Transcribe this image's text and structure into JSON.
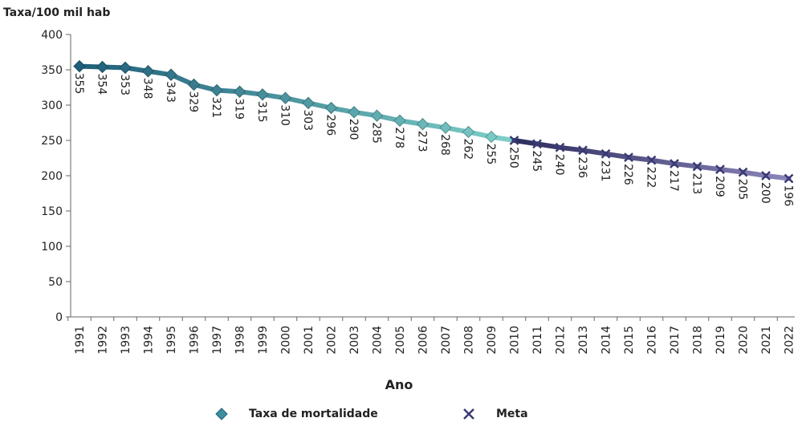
{
  "chart_data": {
    "type": "line",
    "ylabel": "Taxa/100 mil hab",
    "xlabel": "Ano",
    "ylim": [
      0,
      400
    ],
    "yticks": [
      0,
      50,
      100,
      150,
      200,
      250,
      300,
      350,
      400
    ],
    "grid": false,
    "legend_position": "bottom",
    "x": [
      "1991",
      "1992",
      "1993",
      "1994",
      "1995",
      "1996",
      "1997",
      "1998",
      "1999",
      "2000",
      "2001",
      "2002",
      "2003",
      "2004",
      "2005",
      "2006",
      "2007",
      "2008",
      "2009",
      "2010",
      "2011",
      "2012",
      "2013",
      "2014",
      "2015",
      "2016",
      "2017",
      "2018",
      "2019",
      "2020",
      "2021",
      "2022"
    ],
    "series": [
      {
        "name": "Taxa de mortalidade",
        "marker": "diamond",
        "color_start": "#1f5f7a",
        "color_end": "#7ecfc9",
        "x": [
          "1991",
          "1992",
          "1993",
          "1994",
          "1995",
          "1996",
          "1997",
          "1998",
          "1999",
          "2000",
          "2001",
          "2002",
          "2003",
          "2004",
          "2005",
          "2006",
          "2007",
          "2008",
          "2009",
          "2010"
        ],
        "values": [
          355,
          354,
          353,
          348,
          343,
          329,
          321,
          319,
          315,
          310,
          303,
          296,
          290,
          285,
          278,
          273,
          268,
          262,
          255,
          250
        ]
      },
      {
        "name": "Meta",
        "marker": "x",
        "color_start": "#2b2c5e",
        "color_end": "#8a84b8",
        "x": [
          "2010",
          "2011",
          "2012",
          "2013",
          "2014",
          "2015",
          "2016",
          "2017",
          "2018",
          "2019",
          "2020",
          "2021",
          "2022"
        ],
        "values": [
          250,
          245,
          240,
          236,
          231,
          226,
          222,
          217,
          213,
          209,
          205,
          200,
          196
        ]
      }
    ],
    "data_labels": [
      "355",
      "354",
      "353",
      "348",
      "343",
      "329",
      "321",
      "319",
      "315",
      "310",
      "303",
      "296",
      "290",
      "285",
      "278",
      "273",
      "268",
      "262",
      "255",
      "250",
      "245",
      "240",
      "236",
      "231",
      "226",
      "222",
      "217",
      "213",
      "209",
      "205",
      "200",
      "196"
    ]
  }
}
